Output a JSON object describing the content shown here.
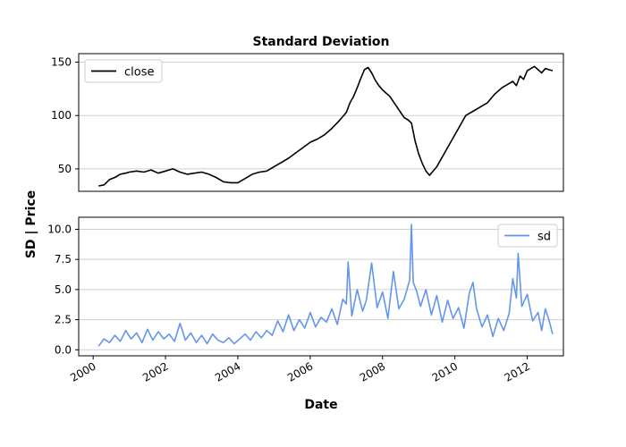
{
  "chart_data": {
    "type": "line",
    "title": "Standard Deviation",
    "ylabel": "SD | Price",
    "xlabel": "Date",
    "x_ticks": [
      "2000",
      "2002",
      "2004",
      "2006",
      "2008",
      "2010",
      "2012"
    ],
    "xlim": [
      1999.6,
      2013.0
    ],
    "grid": "horizontal",
    "colors": {
      "close": "#000000",
      "sd": "#6495ed",
      "grid": "#d0d0d0"
    },
    "panels": [
      {
        "legend_placement": "top-left",
        "ylim": [
          29,
          158
        ],
        "y_ticks": [
          "50",
          "100",
          "150"
        ],
        "y_tick_values": [
          50,
          100,
          150
        ],
        "series": [
          {
            "name": "close",
            "x": [
              2000.15,
              2000.3,
              2000.45,
              2000.6,
              2000.75,
              2000.9,
              2001.0,
              2001.2,
              2001.4,
              2001.6,
              2001.8,
              2002.0,
              2002.2,
              2002.4,
              2002.6,
              2002.8,
              2003.0,
              2003.2,
              2003.4,
              2003.6,
              2003.8,
              2004.0,
              2004.2,
              2004.4,
              2004.6,
              2004.8,
              2005.0,
              2005.2,
              2005.4,
              2005.6,
              2005.8,
              2006.0,
              2006.2,
              2006.4,
              2006.6,
              2006.8,
              2007.0,
              2007.1,
              2007.2,
              2007.3,
              2007.4,
              2007.5,
              2007.6,
              2007.7,
              2007.8,
              2007.9,
              2008.0,
              2008.2,
              2008.4,
              2008.6,
              2008.7,
              2008.8,
              2008.9,
              2009.0,
              2009.1,
              2009.2,
              2009.3,
              2009.5,
              2009.7,
              2009.9,
              2010.1,
              2010.3,
              2010.5,
              2010.7,
              2010.9,
              2011.1,
              2011.3,
              2011.5,
              2011.6,
              2011.7,
              2011.8,
              2011.9,
              2012.0,
              2012.2,
              2012.4,
              2012.5,
              2012.6,
              2012.7
            ],
            "values": [
              34,
              35,
              40,
              42,
              45,
              46,
              47,
              48,
              47,
              49,
              46,
              48,
              50,
              47,
              45,
              46,
              47,
              45,
              42,
              38,
              37,
              37,
              41,
              45,
              47,
              48,
              52,
              56,
              60,
              65,
              70,
              75,
              78,
              82,
              88,
              95,
              103,
              112,
              118,
              126,
              135,
              143,
              145,
              140,
              133,
              128,
              124,
              118,
              108,
              98,
              96,
              93,
              76,
              64,
              55,
              48,
              44,
              52,
              64,
              76,
              88,
              100,
              104,
              108,
              112,
              120,
              126,
              130,
              132,
              128,
              137,
              134,
              142,
              146,
              140,
              144,
              143,
              142
            ]
          }
        ]
      },
      {
        "legend_placement": "top-right",
        "ylim": [
          -0.5,
          11
        ],
        "y_ticks": [
          "0.0",
          "2.5",
          "5.0",
          "7.5",
          "10.0"
        ],
        "y_tick_values": [
          0,
          2.5,
          5,
          7.5,
          10
        ],
        "series": [
          {
            "name": "sd",
            "x": [
              2000.15,
              2000.3,
              2000.45,
              2000.6,
              2000.75,
              2000.9,
              2001.05,
              2001.2,
              2001.35,
              2001.5,
              2001.65,
              2001.8,
              2001.95,
              2002.1,
              2002.25,
              2002.4,
              2002.55,
              2002.7,
              2002.85,
              2003.0,
              2003.15,
              2003.3,
              2003.45,
              2003.6,
              2003.75,
              2003.9,
              2004.05,
              2004.2,
              2004.35,
              2004.5,
              2004.65,
              2004.8,
              2004.95,
              2005.1,
              2005.25,
              2005.4,
              2005.55,
              2005.7,
              2005.85,
              2006.0,
              2006.15,
              2006.3,
              2006.45,
              2006.6,
              2006.75,
              2006.9,
              2007.0,
              2007.05,
              2007.15,
              2007.3,
              2007.45,
              2007.55,
              2007.7,
              2007.85,
              2008.0,
              2008.15,
              2008.3,
              2008.45,
              2008.6,
              2008.75,
              2008.8,
              2008.85,
              2008.95,
              2009.05,
              2009.2,
              2009.35,
              2009.5,
              2009.65,
              2009.8,
              2009.95,
              2010.1,
              2010.25,
              2010.4,
              2010.5,
              2010.6,
              2010.75,
              2010.9,
              2011.05,
              2011.2,
              2011.35,
              2011.5,
              2011.6,
              2011.7,
              2011.75,
              2011.85,
              2012.0,
              2012.15,
              2012.3,
              2012.4,
              2012.5,
              2012.6,
              2012.7
            ],
            "values": [
              0.3,
              0.9,
              0.6,
              1.2,
              0.7,
              1.6,
              0.9,
              1.4,
              0.6,
              1.7,
              0.8,
              1.5,
              0.9,
              1.3,
              0.7,
              2.2,
              0.8,
              1.4,
              0.6,
              1.2,
              0.5,
              1.3,
              0.8,
              0.6,
              1.0,
              0.5,
              0.9,
              1.3,
              0.8,
              1.5,
              1.0,
              1.6,
              1.2,
              2.4,
              1.5,
              2.9,
              1.6,
              2.5,
              1.8,
              3.1,
              1.9,
              2.7,
              2.3,
              3.4,
              2.1,
              4.2,
              3.8,
              7.3,
              2.8,
              5.0,
              3.2,
              4.1,
              7.2,
              3.5,
              4.8,
              2.6,
              6.5,
              3.4,
              4.2,
              5.8,
              10.4,
              5.6,
              4.8,
              3.6,
              5.0,
              2.9,
              4.5,
              2.3,
              4.1,
              2.6,
              3.5,
              1.8,
              4.7,
              5.6,
              3.4,
              1.9,
              2.9,
              1.1,
              2.6,
              1.6,
              3.0,
              5.9,
              4.3,
              8.0,
              3.6,
              4.6,
              2.4,
              3.1,
              1.6,
              3.4,
              2.5,
              1.3
            ]
          }
        ]
      }
    ]
  }
}
